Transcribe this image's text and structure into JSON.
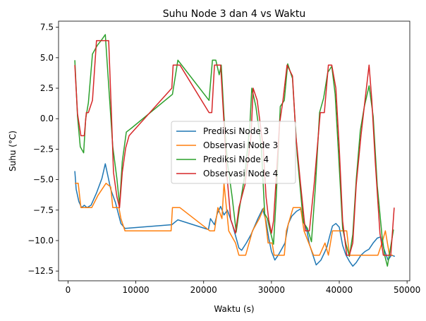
{
  "chart_data": {
    "type": "line",
    "title": "Suhu Node 3 dan 4 vs Waktu",
    "xlabel": "Waktu (s)",
    "ylabel": "Suhu (°C)",
    "xlim": [
      -1400,
      50400
    ],
    "ylim": [
      -13.3,
      8.0
    ],
    "xticks": [
      0,
      10000,
      20000,
      30000,
      40000,
      50000
    ],
    "xtick_labels": [
      "0",
      "10000",
      "20000",
      "30000",
      "40000",
      "50000"
    ],
    "yticks": [
      -12.5,
      -10.0,
      -7.5,
      -5.0,
      -2.5,
      0.0,
      2.5,
      5.0,
      7.5
    ],
    "ytick_labels": [
      "−12.5",
      "−10.0",
      "−7.5",
      "−5.0",
      "−2.5",
      "0.0",
      "2.5",
      "5.0",
      "7.5"
    ],
    "grid": false,
    "legend_position": "center-right",
    "series": [
      {
        "name": "Prediksi Node 3",
        "color": "#1f77b4",
        "x": [
          1000,
          1200,
          1600,
          2000,
          2400,
          2800,
          3400,
          4200,
          5000,
          5500,
          6300,
          7000,
          7800,
          8400,
          15300,
          16200,
          20700,
          21000,
          21600,
          22000,
          22500,
          23000,
          23500,
          24200,
          24800,
          25200,
          25600,
          26300,
          27000,
          28000,
          28700,
          29200,
          29600,
          30000,
          30500,
          31000,
          31500,
          32000,
          32500,
          33000,
          33700,
          34300,
          34700,
          35200,
          35600,
          36000,
          36600,
          37300,
          37900,
          38200,
          38600,
          39000,
          39500,
          40000,
          40500,
          41000,
          41500,
          42000,
          42500,
          43200,
          43800,
          44400,
          45000,
          45600,
          46100,
          46600,
          47200,
          47700,
          48200
        ],
        "y": [
          -4.3,
          -5.8,
          -6.8,
          -7.3,
          -7.1,
          -7.3,
          -7.1,
          -6.1,
          -4.9,
          -3.7,
          -5.8,
          -6.9,
          -8.6,
          -9.0,
          -8.7,
          -8.3,
          -9.1,
          -8.2,
          -8.7,
          -7.8,
          -7.2,
          -7.9,
          -7.5,
          -8.6,
          -9.8,
          -10.6,
          -10.8,
          -10.2,
          -9.5,
          -8.2,
          -7.4,
          -8.4,
          -9.8,
          -10.9,
          -11.6,
          -11.2,
          -10.7,
          -10.2,
          -8.6,
          -8.0,
          -7.6,
          -7.4,
          -8.4,
          -9.1,
          -10.3,
          -11.0,
          -12.0,
          -11.6,
          -10.9,
          -10.5,
          -9.6,
          -8.8,
          -8.6,
          -8.9,
          -10.4,
          -11.2,
          -11.7,
          -12.1,
          -11.8,
          -11.2,
          -10.9,
          -10.7,
          -10.2,
          -9.8,
          -9.7,
          -10.7,
          -11.6,
          -11.2,
          -11.3
        ]
      },
      {
        "name": "Observasi Node 3",
        "color": "#ff7f0e",
        "x": [
          1000,
          1500,
          1900,
          2400,
          2600,
          3500,
          4400,
          5600,
          6300,
          6600,
          7500,
          7800,
          8400,
          15200,
          15400,
          16500,
          20900,
          21600,
          22100,
          22700,
          23000,
          23700,
          24700,
          25200,
          26200,
          27200,
          28200,
          28900,
          29500,
          30100,
          30400,
          31900,
          32200,
          33200,
          34300,
          34800,
          36200,
          37100,
          37900,
          38400,
          39000,
          41100,
          41500,
          42400,
          43500,
          45700,
          46300,
          46800,
          47400,
          47900
        ],
        "y": [
          -5.3,
          -5.3,
          -7.3,
          -7.3,
          -7.3,
          -7.3,
          -6.3,
          -5.3,
          -5.6,
          -7.3,
          -7.3,
          -8.2,
          -9.2,
          -9.2,
          -7.3,
          -7.3,
          -9.2,
          -9.2,
          -7.3,
          -8.2,
          -5.3,
          -9.2,
          -10.2,
          -11.2,
          -11.2,
          -9.2,
          -8.2,
          -7.3,
          -10.2,
          -10.2,
          -11.2,
          -11.2,
          -9.2,
          -7.3,
          -7.3,
          -9.2,
          -11.2,
          -11.2,
          -10.2,
          -11.2,
          -9.2,
          -9.2,
          -11.2,
          -11.2,
          -11.2,
          -11.2,
          -10.2,
          -9.2,
          -11.2,
          -11.2
        ]
      },
      {
        "name": "Prediksi Node 4",
        "color": "#2ca02c",
        "x": [
          1000,
          1400,
          1800,
          2300,
          2600,
          3000,
          3600,
          4300,
          5000,
          5500,
          6300,
          6600,
          7200,
          7600,
          8000,
          8600,
          9300,
          15400,
          16200,
          20800,
          21300,
          21800,
          22300,
          22600,
          23000,
          23500,
          24200,
          24800,
          25300,
          26100,
          26800,
          27100,
          27700,
          28500,
          29000,
          29400,
          29800,
          30300,
          30700,
          31300,
          31900,
          32400,
          33100,
          33800,
          34700,
          35300,
          35900,
          36500,
          37100,
          37700,
          38300,
          38900,
          39400,
          39900,
          40500,
          41000,
          41500,
          42000,
          42500,
          43100,
          43700,
          44400,
          45000,
          45600,
          46300,
          46700,
          47100,
          47500,
          48000
        ],
        "y": [
          4.8,
          0.2,
          -2.3,
          -2.8,
          0.0,
          1.3,
          5.3,
          6.0,
          6.5,
          6.9,
          0.2,
          -2.3,
          -4.9,
          -7.1,
          -3.5,
          -1.1,
          -0.8,
          2.0,
          4.8,
          1.5,
          4.8,
          4.8,
          3.6,
          4.4,
          0.2,
          -3.6,
          -6.4,
          -9.3,
          -7.3,
          -4.5,
          -0.7,
          2.5,
          1.0,
          -2.3,
          -7.8,
          -8.2,
          -9.2,
          -10.3,
          -6.5,
          1.0,
          1.5,
          4.5,
          3.3,
          -3.0,
          -8.5,
          -9.0,
          -10.1,
          -5.4,
          0.5,
          1.7,
          3.8,
          4.3,
          2.0,
          -3.0,
          -9.0,
          -10.3,
          -11.3,
          -9.5,
          -5.0,
          -1.0,
          1.0,
          2.7,
          0.2,
          -5.5,
          -9.6,
          -11.2,
          -12.1,
          -10.8,
          -9.1
        ]
      },
      {
        "name": "Observasi Node 4",
        "color": "#d62728",
        "x": [
          1000,
          1400,
          1900,
          2400,
          2700,
          3000,
          3600,
          4200,
          5400,
          6000,
          6400,
          6700,
          7200,
          7600,
          8000,
          8500,
          9000,
          15300,
          15500,
          16500,
          20800,
          21200,
          21600,
          22200,
          22500,
          23000,
          23400,
          24000,
          24700,
          25200,
          26100,
          27000,
          27300,
          27900,
          28800,
          29200,
          29600,
          30000,
          30300,
          31200,
          31700,
          32300,
          33100,
          33600,
          34300,
          35000,
          35600,
          36300,
          37200,
          37800,
          38400,
          38900,
          39500,
          40000,
          40500,
          41100,
          41500,
          42000,
          42500,
          43200,
          43800,
          44400,
          44800,
          45300,
          46000,
          46500,
          47000,
          47600,
          48100
        ],
        "y": [
          4.4,
          0.4,
          -1.4,
          -1.4,
          0.5,
          0.5,
          1.5,
          6.4,
          6.4,
          6.4,
          0.4,
          -4.4,
          -6.4,
          -7.3,
          -4.4,
          -2.4,
          -1.4,
          2.5,
          4.4,
          4.4,
          0.5,
          0.5,
          4.4,
          4.4,
          4.4,
          -0.4,
          -4.4,
          -8.3,
          -9.4,
          -7.3,
          -5.4,
          -1.4,
          2.5,
          1.5,
          -2.4,
          -6.4,
          -8.3,
          -9.4,
          -8.4,
          -0.4,
          1.5,
          4.4,
          3.5,
          -1.4,
          -5.4,
          -9.2,
          -9.2,
          -5.4,
          0.5,
          0.5,
          4.4,
          4.4,
          2.5,
          -2.4,
          -8.4,
          -11.2,
          -11.2,
          -10.2,
          -5.4,
          -1.4,
          1.5,
          4.4,
          1.5,
          -3.5,
          -9.4,
          -11.2,
          -11.2,
          -11.2,
          -7.3
        ]
      }
    ]
  }
}
